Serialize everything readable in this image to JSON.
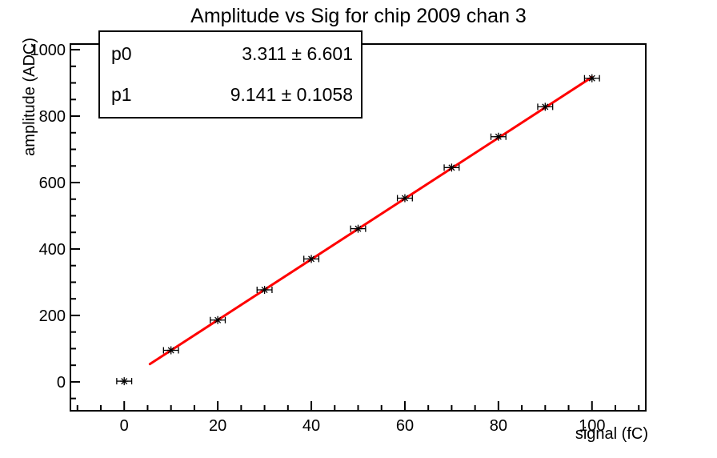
{
  "title": "Amplitude vs Sig for chip 2009 chan 3",
  "axes": {
    "xlabel": "signal (fC)",
    "ylabel": "amplitude (ADC)",
    "xlim": [
      -11.5,
      111.5
    ],
    "ylim": [
      -87,
      1017
    ],
    "xticks_major": [
      0,
      20,
      40,
      60,
      80,
      100
    ],
    "xtick_minor_step": 5,
    "yticks_major": [
      0,
      200,
      400,
      600,
      800,
      1000
    ],
    "ytick_minor_step": 50
  },
  "chart_data": {
    "type": "scatter",
    "x": [
      0,
      10,
      20,
      30,
      40,
      50,
      60,
      70,
      80,
      90,
      100
    ],
    "y": [
      2,
      95,
      186,
      277,
      370,
      461,
      553,
      645,
      738,
      828,
      914
    ],
    "xerr": 1.6,
    "marker": "asterisk-with-xerr",
    "marker_color": "#000000",
    "fit": {
      "p0": 3.311,
      "p1": 9.141,
      "x_from": 5.5,
      "x_to": 100,
      "color": "#ff0000"
    },
    "title": "Amplitude vs Sig for chip 2009 chan 3",
    "xlabel": "signal (fC)",
    "ylabel": "amplitude (ADC)",
    "grid": false,
    "legend": "none"
  },
  "stats_box": {
    "rows": [
      {
        "label": "p0",
        "value": "3.311 ± 6.601"
      },
      {
        "label": "p1",
        "value": "9.141 ± 0.1058"
      }
    ]
  }
}
